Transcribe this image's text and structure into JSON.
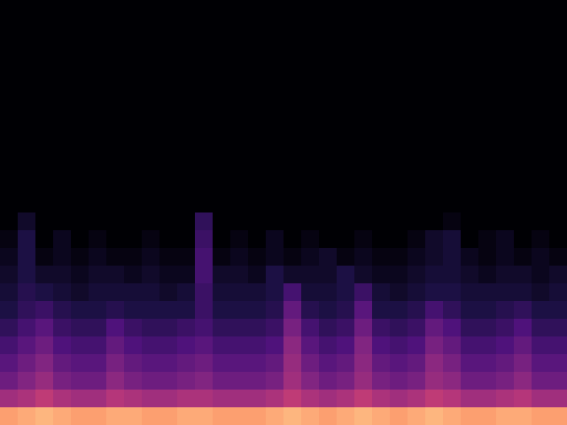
{
  "chart_data": {
    "type": "heatmap",
    "tick_labels": false,
    "zlim": [
      -80,
      0
    ],
    "cells": [
      [
        -80,
        -80,
        -80,
        -80,
        -80,
        -80,
        -80,
        -80,
        -80,
        -80,
        -80,
        -80,
        -80,
        -80,
        -80,
        -80,
        -80,
        -80,
        -80,
        -80,
        -80,
        -80,
        -80,
        -80,
        -80,
        -80,
        -80,
        -80,
        -80,
        -80,
        -80,
        -80
      ],
      [
        -80,
        -80,
        -80,
        -80,
        -80,
        -80,
        -80,
        -80,
        -80,
        -80,
        -80,
        -80,
        -80,
        -80,
        -80,
        -80,
        -80,
        -80,
        -80,
        -80,
        -80,
        -80,
        -80,
        -80,
        -80,
        -80,
        -80,
        -80,
        -80,
        -80,
        -80,
        -80
      ],
      [
        -80,
        -80,
        -80,
        -80,
        -80,
        -80,
        -80,
        -80,
        -80,
        -80,
        -80,
        -80,
        -80,
        -80,
        -80,
        -80,
        -80,
        -80,
        -80,
        -80,
        -80,
        -80,
        -80,
        -80,
        -80,
        -80,
        -80,
        -80,
        -80,
        -80,
        -80,
        -80
      ],
      [
        -80,
        -80,
        -80,
        -80,
        -80,
        -80,
        -80,
        -80,
        -80,
        -80,
        -80,
        -80,
        -80,
        -80,
        -80,
        -80,
        -80,
        -80,
        -80,
        -80,
        -80,
        -80,
        -80,
        -80,
        -80,
        -80,
        -80,
        -80,
        -80,
        -80,
        -80,
        -80
      ],
      [
        -80,
        -80,
        -80,
        -80,
        -80,
        -80,
        -80,
        -80,
        -80,
        -80,
        -80,
        -80,
        -80,
        -80,
        -80,
        -80,
        -80,
        -80,
        -80,
        -80,
        -80,
        -80,
        -80,
        -80,
        -80,
        -80,
        -80,
        -80,
        -80,
        -80,
        -80,
        -80
      ],
      [
        -80,
        -80,
        -80,
        -80,
        -80,
        -80,
        -80,
        -80,
        -80,
        -80,
        -80,
        -80,
        -80,
        -80,
        -80,
        -80,
        -80,
        -80,
        -80,
        -80,
        -80,
        -80,
        -80,
        -80,
        -80,
        -80,
        -80,
        -80,
        -80,
        -80,
        -80,
        -80
      ],
      [
        -80,
        -80,
        -80,
        -80,
        -80,
        -80,
        -80,
        -80,
        -80,
        -80,
        -80,
        -80,
        -80,
        -80,
        -80,
        -80,
        -80,
        -80,
        -80,
        -80,
        -80,
        -80,
        -80,
        -80,
        -80,
        -80,
        -80,
        -80,
        -80,
        -80,
        -80,
        -80
      ],
      [
        -80,
        -80,
        -80,
        -80,
        -80,
        -80,
        -80,
        -80,
        -80,
        -80,
        -80,
        -80,
        -80,
        -80,
        -80,
        -80,
        -80,
        -80,
        -80,
        -80,
        -80,
        -80,
        -80,
        -80,
        -80,
        -80,
        -80,
        -80,
        -80,
        -80,
        -80,
        -80
      ],
      [
        -80,
        -80,
        -80,
        -80,
        -80,
        -80,
        -80,
        -80,
        -80,
        -80,
        -80,
        -80,
        -80,
        -80,
        -80,
        -80,
        -80,
        -80,
        -80,
        -80,
        -80,
        -80,
        -80,
        -80,
        -80,
        -80,
        -80,
        -80,
        -80,
        -80,
        -80,
        -80
      ],
      [
        -80,
        -80,
        -80,
        -80,
        -80,
        -80,
        -80,
        -80,
        -80,
        -80,
        -80,
        -80,
        -80,
        -80,
        -80,
        -80,
        -80,
        -80,
        -80,
        -80,
        -80,
        -80,
        -80,
        -80,
        -80,
        -80,
        -80,
        -80,
        -80,
        -80,
        -80,
        -80
      ],
      [
        -80,
        -80,
        -80,
        -80,
        -80,
        -80,
        -80,
        -80,
        -80,
        -80,
        -80,
        -80,
        -80,
        -80,
        -80,
        -80,
        -80,
        -80,
        -80,
        -80,
        -80,
        -80,
        -80,
        -80,
        -80,
        -80,
        -80,
        -80,
        -80,
        -80,
        -80,
        -80
      ],
      [
        -80,
        -80,
        -80,
        -80,
        -80,
        -80,
        -80,
        -80,
        -80,
        -80,
        -80,
        -80,
        -80,
        -80,
        -80,
        -80,
        -80,
        -80,
        -80,
        -80,
        -80,
        -80,
        -80,
        -80,
        -80,
        -80,
        -80,
        -80,
        -80,
        -80,
        -80,
        -80
      ],
      [
        -80,
        -74,
        -80,
        -80,
        -80,
        -80,
        -80,
        -80,
        -80,
        -80,
        -80,
        -66,
        -80,
        -80,
        -80,
        -80,
        -80,
        -80,
        -80,
        -80,
        -80,
        -80,
        -80,
        -80,
        -80,
        -78,
        -80,
        -80,
        -80,
        -80,
        -80,
        -80
      ],
      [
        -78,
        -70,
        -80,
        -76,
        -80,
        -78,
        -80,
        -80,
        -78,
        -80,
        -80,
        -64,
        -80,
        -78,
        -80,
        -76,
        -80,
        -78,
        -80,
        -80,
        -78,
        -80,
        -80,
        -78,
        -74,
        -72,
        -80,
        -78,
        -76,
        -80,
        -78,
        -80
      ],
      [
        -76,
        -70,
        -78,
        -76,
        -78,
        -76,
        -78,
        -78,
        -76,
        -78,
        -78,
        -62,
        -78,
        -76,
        -78,
        -76,
        -78,
        -76,
        -74,
        -78,
        -76,
        -78,
        -78,
        -76,
        -74,
        -72,
        -76,
        -78,
        -76,
        -78,
        -76,
        -78
      ],
      [
        -74,
        -70,
        -74,
        -74,
        -76,
        -74,
        -74,
        -76,
        -74,
        -76,
        -76,
        -62,
        -74,
        -74,
        -76,
        -70,
        -74,
        -74,
        -74,
        -70,
        -74,
        -76,
        -76,
        -74,
        -72,
        -72,
        -74,
        -76,
        -74,
        -74,
        -76,
        -74
      ],
      [
        -72,
        -68,
        -70,
        -72,
        -74,
        -72,
        -72,
        -72,
        -72,
        -74,
        -72,
        -64,
        -72,
        -72,
        -72,
        -70,
        -62,
        -72,
        -72,
        -70,
        -64,
        -72,
        -74,
        -72,
        -70,
        -70,
        -72,
        -72,
        -72,
        -72,
        -74,
        -72
      ],
      [
        -70,
        -66,
        -64,
        -68,
        -70,
        -70,
        -68,
        -70,
        -70,
        -70,
        -70,
        -64,
        -70,
        -70,
        -70,
        -68,
        -56,
        -68,
        -70,
        -68,
        -58,
        -70,
        -70,
        -68,
        -62,
        -66,
        -70,
        -70,
        -68,
        -66,
        -70,
        -70
      ],
      [
        -66,
        -62,
        -58,
        -64,
        -66,
        -66,
        -60,
        -64,
        -66,
        -66,
        -64,
        -62,
        -66,
        -66,
        -66,
        -64,
        -52,
        -62,
        -66,
        -64,
        -54,
        -64,
        -66,
        -64,
        -56,
        -60,
        -66,
        -66,
        -64,
        -60,
        -66,
        -66
      ],
      [
        -62,
        -58,
        -54,
        -60,
        -62,
        -62,
        -56,
        -60,
        -62,
        -62,
        -60,
        -58,
        -62,
        -62,
        -62,
        -60,
        -48,
        -58,
        -62,
        -60,
        -50,
        -60,
        -62,
        -60,
        -52,
        -56,
        -62,
        -62,
        -60,
        -56,
        -62,
        -62
      ],
      [
        -58,
        -54,
        -50,
        -56,
        -58,
        -58,
        -52,
        -56,
        -58,
        -58,
        -56,
        -54,
        -58,
        -58,
        -58,
        -56,
        -46,
        -54,
        -58,
        -56,
        -48,
        -56,
        -58,
        -56,
        -48,
        -52,
        -58,
        -58,
        -56,
        -52,
        -58,
        -58
      ],
      [
        -54,
        -50,
        -46,
        -52,
        -54,
        -54,
        -48,
        -52,
        -54,
        -54,
        -52,
        -50,
        -54,
        -54,
        -54,
        -52,
        -44,
        -50,
        -54,
        -52,
        -46,
        -52,
        -54,
        -52,
        -46,
        -48,
        -54,
        -54,
        -52,
        -48,
        -54,
        -54
      ],
      [
        -44,
        -42,
        -38,
        -42,
        -44,
        -44,
        -40,
        -42,
        -44,
        -44,
        -42,
        -42,
        -44,
        -44,
        -44,
        -42,
        -38,
        -42,
        -44,
        -42,
        -38,
        -42,
        -44,
        -42,
        -38,
        -40,
        -44,
        -44,
        -42,
        -40,
        -44,
        -44
      ],
      [
        -16,
        -14,
        -12,
        -14,
        -16,
        -16,
        -14,
        -14,
        -16,
        -16,
        -14,
        -14,
        -16,
        -16,
        -16,
        -14,
        -12,
        -14,
        -16,
        -14,
        -12,
        -14,
        -16,
        -14,
        -12,
        -14,
        -16,
        -16,
        -14,
        -14,
        -16,
        -16
      ]
    ]
  }
}
